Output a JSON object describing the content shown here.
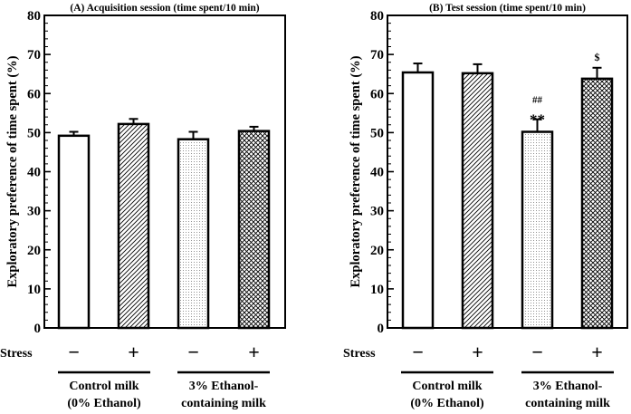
{
  "chart_data": [
    {
      "type": "bar",
      "title": "(A) Acquisition session (time spent/10 min)",
      "ylabel": "Exploratory preference of time spent (%)",
      "ylim": [
        0,
        80
      ],
      "yticks": [
        0,
        10,
        20,
        30,
        40,
        50,
        60,
        70,
        80
      ],
      "row_label": "Stress",
      "categories": [
        "−",
        "+",
        "−",
        "+"
      ],
      "groups": [
        {
          "label_line1": "Control milk",
          "label_line2": "(0% Ethanol)"
        },
        {
          "label_line1": "3% Ethanol-",
          "label_line2": "containing milk"
        }
      ],
      "patterns": [
        "empty",
        "diagonal-hatch",
        "dotted",
        "cross-hatch"
      ],
      "values": [
        49.2,
        52.2,
        48.3,
        50.4
      ],
      "errors": [
        1.0,
        1.3,
        1.9,
        1.1
      ],
      "annotations": [
        "",
        "",
        "",
        ""
      ],
      "annotations2": [
        "",
        "",
        "",
        ""
      ]
    },
    {
      "type": "bar",
      "title": "(B) Test session (time spent/10 min)",
      "ylabel": "Exploratory preference of time spent (%)",
      "ylim": [
        0,
        80
      ],
      "yticks": [
        0,
        10,
        20,
        30,
        40,
        50,
        60,
        70,
        80
      ],
      "row_label": "Stress",
      "categories": [
        "−",
        "+",
        "−",
        "+"
      ],
      "groups": [
        {
          "label_line1": "Control milk",
          "label_line2": "(0% Ethanol)"
        },
        {
          "label_line1": "3% Ethanol-",
          "label_line2": "containing milk"
        }
      ],
      "patterns": [
        "empty",
        "diagonal-hatch",
        "dotted",
        "cross-hatch"
      ],
      "values": [
        65.4,
        65.2,
        50.2,
        63.8
      ],
      "errors": [
        2.3,
        2.3,
        3.2,
        2.8
      ],
      "annotations": [
        "",
        "",
        "**",
        "$"
      ],
      "annotations2": [
        "",
        "",
        "##",
        ""
      ]
    }
  ]
}
